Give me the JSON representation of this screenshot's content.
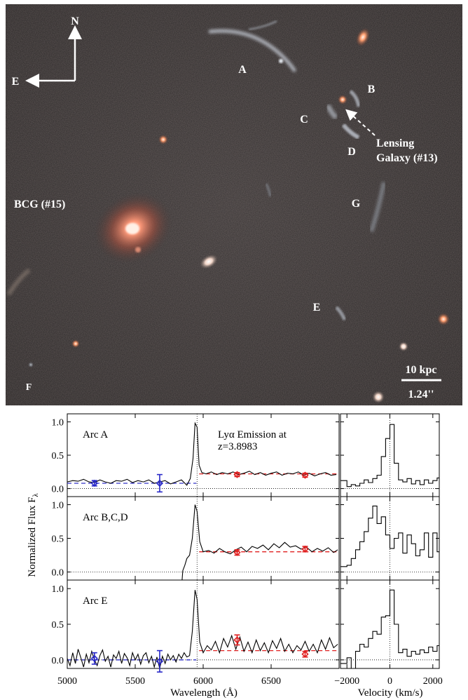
{
  "image_panel": {
    "compass": {
      "north": "N",
      "east": "E"
    },
    "arc_labels": {
      "A": "A",
      "B": "B",
      "C": "C",
      "D": "D",
      "E": "E",
      "F": "F",
      "G": "G"
    },
    "bcg_label": "BCG (#15)",
    "lensing_label_line1": "Lensing",
    "lensing_label_line2": "Galaxy (#13)",
    "scalebar": {
      "physical": "10 kpc",
      "angular": "1.24''"
    }
  },
  "chart_data": {
    "type": "line",
    "y_axis_label": "Normalized Flux F",
    "y_axis_label_subscript": "λ",
    "wavelength_axis": {
      "label": "Wavelength (Å)",
      "ticks": [
        5000,
        5500,
        6000,
        6500
      ],
      "xlim": [
        5000,
        7000
      ]
    },
    "velocity_axis": {
      "label": "Velocity (km/s)",
      "ticks": [
        -2000,
        0,
        2000
      ],
      "xlim": [
        -2300,
        2300
      ]
    },
    "lya_wavelength": 5955,
    "panels": [
      {
        "name": "Arc A",
        "annotation_line1": "Lyα Emission at",
        "annotation_line2": "z=3.8983",
        "yticks": [
          0.0,
          0.5,
          1.0
        ],
        "ylim": [
          -0.12,
          1.12
        ],
        "blue_continuum": {
          "x": [
            5000,
            5950
          ],
          "y": 0.08
        },
        "red_continuum": {
          "x": [
            5970,
            7000
          ],
          "y": 0.22
        },
        "blue_points": [
          {
            "x": 5200,
            "y": 0.08,
            "err": 0.04
          },
          {
            "x": 5680,
            "y": 0.08,
            "err": 0.13
          }
        ],
        "red_points": [
          {
            "x": 6250,
            "y": 0.21,
            "err": 0.03
          },
          {
            "x": 6750,
            "y": 0.2,
            "err": 0.03
          }
        ],
        "spectrum": [
          [
            5000,
            0.1
          ],
          [
            5040,
            0.12
          ],
          [
            5080,
            0.11
          ],
          [
            5120,
            0.14
          ],
          [
            5160,
            0.1
          ],
          [
            5200,
            0.09
          ],
          [
            5240,
            0.13
          ],
          [
            5280,
            0.1
          ],
          [
            5320,
            0.08
          ],
          [
            5360,
            0.12
          ],
          [
            5400,
            0.11
          ],
          [
            5440,
            0.14
          ],
          [
            5480,
            0.09
          ],
          [
            5520,
            0.12
          ],
          [
            5560,
            0.1
          ],
          [
            5600,
            0.13
          ],
          [
            5640,
            0.08
          ],
          [
            5680,
            0.1
          ],
          [
            5720,
            0.12
          ],
          [
            5760,
            0.07
          ],
          [
            5800,
            0.1
          ],
          [
            5840,
            0.13
          ],
          [
            5880,
            0.05
          ],
          [
            5905,
            0.15
          ],
          [
            5925,
            0.45
          ],
          [
            5940,
            0.98
          ],
          [
            5955,
            0.92
          ],
          [
            5970,
            0.35
          ],
          [
            5990,
            0.24
          ],
          [
            6020,
            0.22
          ],
          [
            6060,
            0.25
          ],
          [
            6100,
            0.21
          ],
          [
            6140,
            0.24
          ],
          [
            6180,
            0.22
          ],
          [
            6220,
            0.25
          ],
          [
            6260,
            0.21
          ],
          [
            6300,
            0.23
          ],
          [
            6340,
            0.26
          ],
          [
            6380,
            0.21
          ],
          [
            6420,
            0.24
          ],
          [
            6460,
            0.2
          ],
          [
            6500,
            0.23
          ],
          [
            6540,
            0.25
          ],
          [
            6580,
            0.2
          ],
          [
            6620,
            0.23
          ],
          [
            6660,
            0.22
          ],
          [
            6700,
            0.25
          ],
          [
            6740,
            0.2
          ],
          [
            6780,
            0.23
          ],
          [
            6820,
            0.19
          ],
          [
            6860,
            0.22
          ],
          [
            6900,
            0.24
          ],
          [
            6940,
            0.2
          ],
          [
            6980,
            0.21
          ]
        ],
        "velocity_profile": [
          [
            -2300,
            0.12
          ],
          [
            -2000,
            0.03
          ],
          [
            -1800,
            0.06
          ],
          [
            -1600,
            0.04
          ],
          [
            -1400,
            0.08
          ],
          [
            -1200,
            0.13
          ],
          [
            -1000,
            0.09
          ],
          [
            -800,
            0.15
          ],
          [
            -600,
            0.2
          ],
          [
            -400,
            0.48
          ],
          [
            -200,
            0.75
          ],
          [
            0,
            0.96
          ],
          [
            200,
            0.38
          ],
          [
            400,
            0.13
          ],
          [
            600,
            0.1
          ],
          [
            800,
            0.15
          ],
          [
            1000,
            0.07
          ],
          [
            1200,
            0.12
          ],
          [
            1400,
            0.06
          ],
          [
            1600,
            0.13
          ],
          [
            1800,
            0.08
          ],
          [
            2000,
            0.12
          ],
          [
            2200,
            0.16
          ]
        ]
      },
      {
        "name": "Arc B,C,D",
        "yticks": [
          0.0,
          0.5,
          1.0
        ],
        "ylim": [
          -0.12,
          1.12
        ],
        "red_continuum": {
          "x": [
            5970,
            7000
          ],
          "y": 0.3
        },
        "red_points": [
          {
            "x": 6250,
            "y": 0.29,
            "err": 0.04
          },
          {
            "x": 6750,
            "y": 0.34,
            "err": 0.04
          }
        ],
        "spectrum": [
          [
            5845,
            -0.12
          ],
          [
            5850,
            0.02
          ],
          [
            5865,
            0.1
          ],
          [
            5880,
            0.2
          ],
          [
            5900,
            0.25
          ],
          [
            5920,
            0.5
          ],
          [
            5940,
            1.0
          ],
          [
            5955,
            0.9
          ],
          [
            5975,
            0.45
          ],
          [
            6000,
            0.3
          ],
          [
            6040,
            0.32
          ],
          [
            6080,
            0.28
          ],
          [
            6120,
            0.35
          ],
          [
            6160,
            0.3
          ],
          [
            6200,
            0.27
          ],
          [
            6240,
            0.33
          ],
          [
            6280,
            0.37
          ],
          [
            6320,
            0.3
          ],
          [
            6360,
            0.38
          ],
          [
            6400,
            0.35
          ],
          [
            6440,
            0.4
          ],
          [
            6480,
            0.33
          ],
          [
            6520,
            0.42
          ],
          [
            6560,
            0.36
          ],
          [
            6600,
            0.44
          ],
          [
            6640,
            0.37
          ],
          [
            6680,
            0.39
          ],
          [
            6720,
            0.34
          ],
          [
            6760,
            0.37
          ],
          [
            6800,
            0.3
          ],
          [
            6840,
            0.35
          ],
          [
            6880,
            0.31
          ],
          [
            6920,
            0.36
          ],
          [
            6960,
            0.29
          ],
          [
            6990,
            0.33
          ]
        ],
        "velocity_profile": [
          [
            -2300,
            0.08
          ],
          [
            -2000,
            0.1
          ],
          [
            -1800,
            0.2
          ],
          [
            -1600,
            0.33
          ],
          [
            -1400,
            0.45
          ],
          [
            -1200,
            0.6
          ],
          [
            -1000,
            0.8
          ],
          [
            -800,
            0.98
          ],
          [
            -600,
            0.72
          ],
          [
            -400,
            0.82
          ],
          [
            -200,
            0.55
          ],
          [
            0,
            0.35
          ],
          [
            200,
            0.5
          ],
          [
            400,
            0.58
          ],
          [
            600,
            0.28
          ],
          [
            800,
            0.55
          ],
          [
            1000,
            0.42
          ],
          [
            1200,
            0.24
          ],
          [
            1400,
            0.33
          ],
          [
            1600,
            0.58
          ],
          [
            1800,
            0.22
          ],
          [
            2000,
            0.58
          ],
          [
            2200,
            0.3
          ]
        ]
      },
      {
        "name": "Arc E",
        "yticks": [
          0.0,
          0.5,
          1.0
        ],
        "ylim": [
          -0.12,
          1.12
        ],
        "blue_continuum": {
          "x": [
            5000,
            5950
          ],
          "y": 0.0
        },
        "red_continuum": {
          "x": [
            5970,
            7000
          ],
          "y": 0.13
        },
        "blue_points": [
          {
            "x": 5200,
            "y": 0.02,
            "err": 0.08
          },
          {
            "x": 5680,
            "y": -0.02,
            "err": 0.15
          }
        ],
        "red_points": [
          {
            "x": 6250,
            "y": 0.28,
            "err": 0.07
          },
          {
            "x": 6750,
            "y": 0.08,
            "err": 0.04
          }
        ],
        "spectrum": [
          [
            5000,
            0.02
          ],
          [
            5020,
            -0.08
          ],
          [
            5040,
            0.1
          ],
          [
            5060,
            -0.05
          ],
          [
            5080,
            0.15
          ],
          [
            5100,
            0.03
          ],
          [
            5120,
            -0.1
          ],
          [
            5140,
            0.08
          ],
          [
            5160,
            -0.04
          ],
          [
            5180,
            0.12
          ],
          [
            5200,
            0.0
          ],
          [
            5220,
            -0.08
          ],
          [
            5240,
            0.06
          ],
          [
            5260,
            0.14
          ],
          [
            5280,
            -0.02
          ],
          [
            5300,
            0.05
          ],
          [
            5320,
            -0.1
          ],
          [
            5340,
            0.07
          ],
          [
            5360,
            0.02
          ],
          [
            5380,
            0.12
          ],
          [
            5400,
            -0.05
          ],
          [
            5420,
            0.09
          ],
          [
            5440,
            0.03
          ],
          [
            5460,
            -0.08
          ],
          [
            5480,
            0.1
          ],
          [
            5500,
            0.0
          ],
          [
            5520,
            0.08
          ],
          [
            5540,
            -0.06
          ],
          [
            5560,
            0.06
          ],
          [
            5580,
            0.1
          ],
          [
            5600,
            -0.04
          ],
          [
            5620,
            0.05
          ],
          [
            5640,
            -0.1
          ],
          [
            5660,
            0.04
          ],
          [
            5680,
            -0.12
          ],
          [
            5700,
            0.05
          ],
          [
            5720,
            -0.05
          ],
          [
            5740,
            0.08
          ],
          [
            5760,
            0.0
          ],
          [
            5780,
            0.06
          ],
          [
            5800,
            -0.03
          ],
          [
            5820,
            0.08
          ],
          [
            5840,
            0.02
          ],
          [
            5860,
            0.1
          ],
          [
            5880,
            0.04
          ],
          [
            5900,
            0.06
          ],
          [
            5920,
            0.4
          ],
          [
            5940,
            0.98
          ],
          [
            5955,
            0.85
          ],
          [
            5975,
            0.25
          ],
          [
            6000,
            0.1
          ],
          [
            6030,
            0.2
          ],
          [
            6060,
            0.14
          ],
          [
            6090,
            0.26
          ],
          [
            6120,
            0.1
          ],
          [
            6150,
            0.3
          ],
          [
            6180,
            0.18
          ],
          [
            6210,
            0.34
          ],
          [
            6240,
            0.15
          ],
          [
            6270,
            0.32
          ],
          [
            6300,
            0.12
          ],
          [
            6330,
            0.25
          ],
          [
            6360,
            0.1
          ],
          [
            6390,
            0.28
          ],
          [
            6420,
            0.13
          ],
          [
            6450,
            0.24
          ],
          [
            6480,
            0.1
          ],
          [
            6510,
            0.27
          ],
          [
            6540,
            0.16
          ],
          [
            6570,
            0.3
          ],
          [
            6600,
            0.12
          ],
          [
            6630,
            0.22
          ],
          [
            6660,
            0.1
          ],
          [
            6690,
            0.2
          ],
          [
            6720,
            0.14
          ],
          [
            6750,
            0.26
          ],
          [
            6780,
            0.12
          ],
          [
            6810,
            0.22
          ],
          [
            6840,
            0.1
          ],
          [
            6870,
            0.28
          ],
          [
            6900,
            0.15
          ],
          [
            6930,
            0.31
          ],
          [
            6960,
            0.17
          ],
          [
            6990,
            0.22
          ]
        ],
        "velocity_profile": [
          [
            -2300,
            -0.05
          ],
          [
            -2000,
            0.03
          ],
          [
            -1800,
            -0.12
          ],
          [
            -1600,
            0.12
          ],
          [
            -1400,
            0.22
          ],
          [
            -1200,
            0.18
          ],
          [
            -1000,
            0.3
          ],
          [
            -800,
            0.4
          ],
          [
            -600,
            0.36
          ],
          [
            -400,
            0.6
          ],
          [
            -200,
            0.62
          ],
          [
            0,
            0.98
          ],
          [
            200,
            0.5
          ],
          [
            400,
            0.1
          ],
          [
            600,
            0.15
          ],
          [
            800,
            0.05
          ],
          [
            1000,
            0.12
          ],
          [
            1200,
            0.08
          ],
          [
            1400,
            0.14
          ],
          [
            1600,
            0.1
          ],
          [
            1800,
            0.18
          ],
          [
            2000,
            0.12
          ],
          [
            2200,
            0.2
          ]
        ]
      }
    ]
  }
}
